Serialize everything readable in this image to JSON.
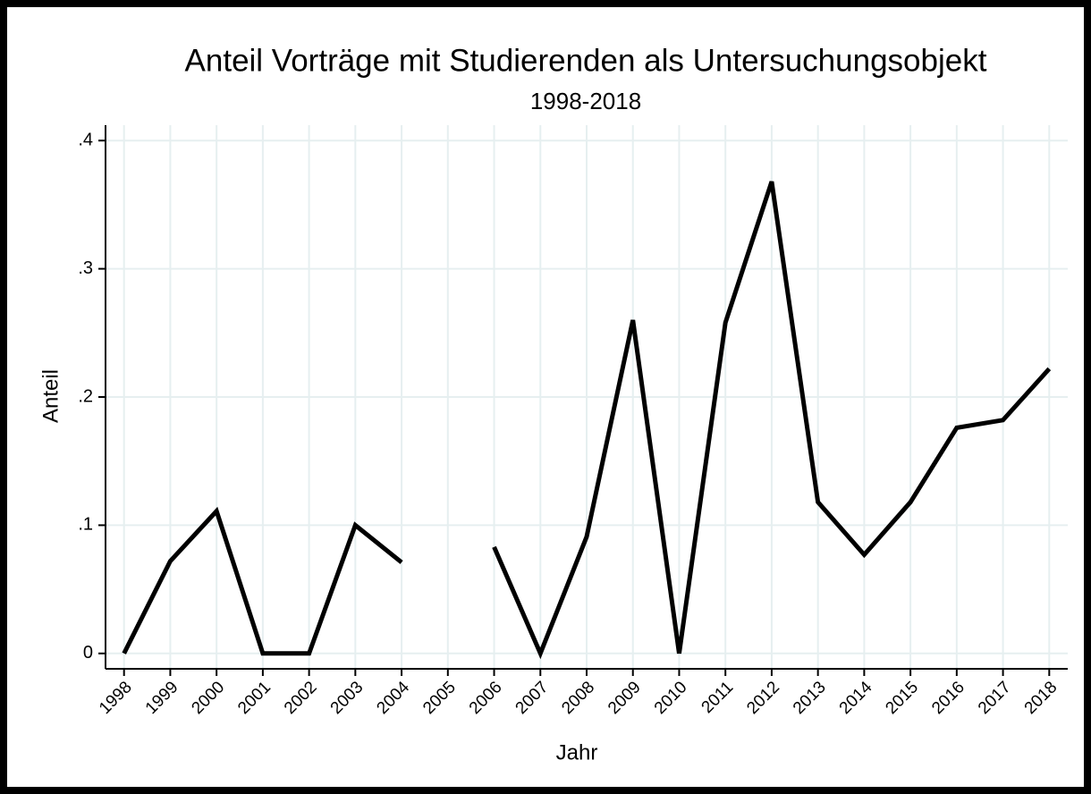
{
  "chart_data": {
    "type": "line",
    "title": "Anteil Vorträge mit Studierenden als Untersuchungsobjekt",
    "subtitle": "1998-2018",
    "x_label": "Jahr",
    "y_label": "Anteil",
    "x": [
      1998,
      1999,
      2000,
      2001,
      2002,
      2003,
      2004,
      2005,
      2006,
      2007,
      2008,
      2009,
      2010,
      2011,
      2012,
      2013,
      2014,
      2015,
      2016,
      2017,
      2018
    ],
    "values": [
      0,
      0.072,
      0.111,
      0,
      0,
      0.1,
      0.071,
      null,
      0.083,
      0,
      0.091,
      0.26,
      0,
      0.258,
      0.368,
      0.118,
      0.077,
      0.118,
      0.176,
      0.182,
      0.222
    ],
    "color": "#000000",
    "xlim": [
      1997.6,
      2018.4
    ],
    "xticks": [
      1998,
      1999,
      2000,
      2001,
      2002,
      2003,
      2004,
      2005,
      2006,
      2007,
      2008,
      2009,
      2010,
      2011,
      2012,
      2013,
      2014,
      2015,
      2016,
      2017,
      2018
    ],
    "ylim": [
      -0.012,
      0.412
    ],
    "yticks": [
      0,
      {
        "value": 0.1,
        "label": ".1"
      },
      {
        "value": 0.2,
        "label": ".2"
      },
      {
        "value": 0.3,
        "label": ".3"
      },
      {
        "value": 0.4,
        "label": ".4"
      }
    ],
    "grid": true
  }
}
